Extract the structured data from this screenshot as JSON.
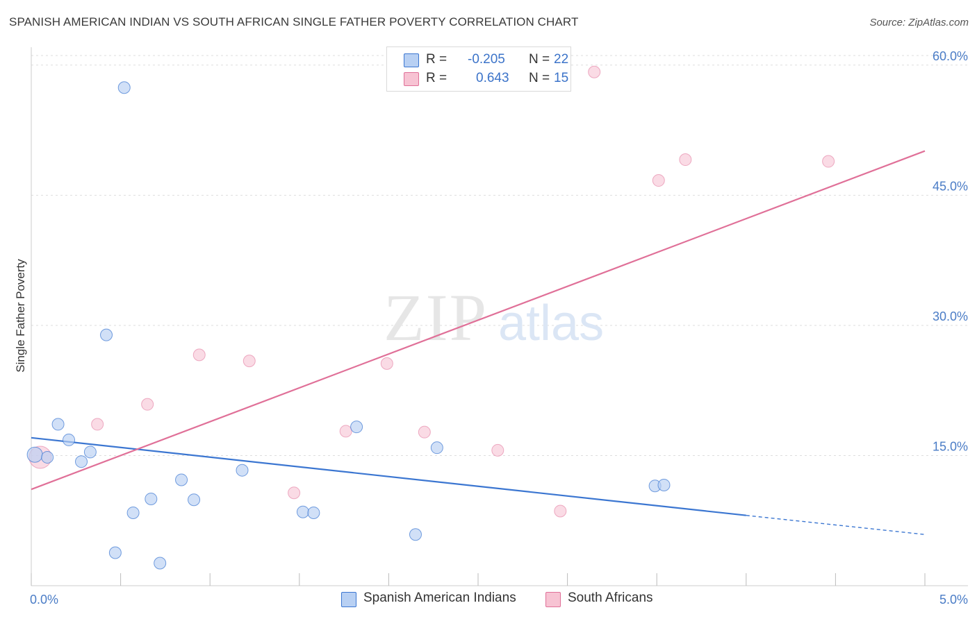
{
  "header": {
    "title": "SPANISH AMERICAN INDIAN VS SOUTH AFRICAN SINGLE FATHER POVERTY CORRELATION CHART",
    "source": "Source: ZipAtlas.com"
  },
  "watermark": {
    "zip": "ZIP",
    "atlas": "atlas"
  },
  "legend": {
    "r_label": "R =",
    "n_label": "N =",
    "series1": {
      "r": "-0.205",
      "n": "22"
    },
    "series2": {
      "r": "0.643",
      "n": "15"
    }
  },
  "chart_data": {
    "type": "scatter",
    "title": "SPANISH AMERICAN INDIAN VS SOUTH AFRICAN SINGLE FATHER POVERTY CORRELATION CHART",
    "xlabel": "",
    "ylabel": "Single Father Poverty",
    "xlim": [
      0,
      5
    ],
    "ylim": [
      0,
      61.5
    ],
    "x_tick_labels": [
      "0.0%",
      "5.0%"
    ],
    "y_ticks": [
      15,
      30,
      45,
      60
    ],
    "y_tick_labels": [
      "15.0%",
      "30.0%",
      "45.0%",
      "60.0%"
    ],
    "grid": true,
    "colors": {
      "series1": "#3b76d1",
      "series2": "#e07098",
      "fill1": "#b8d0f3",
      "fill2": "#f7c3d3"
    },
    "series": [
      {
        "name": "Spanish American Indians",
        "points": [
          [
            0.02,
            15.1
          ],
          [
            0.09,
            14.8
          ],
          [
            0.15,
            18.6
          ],
          [
            0.21,
            16.8
          ],
          [
            0.28,
            14.3
          ],
          [
            0.33,
            15.4
          ],
          [
            0.42,
            28.9
          ],
          [
            0.47,
            3.8
          ],
          [
            0.52,
            57.4
          ],
          [
            0.57,
            8.4
          ],
          [
            0.67,
            10.0
          ],
          [
            0.72,
            2.6
          ],
          [
            0.84,
            12.2
          ],
          [
            0.91,
            9.9
          ],
          [
            1.18,
            13.3
          ],
          [
            1.52,
            8.5
          ],
          [
            1.58,
            8.4
          ],
          [
            1.82,
            18.3
          ],
          [
            2.15,
            5.9
          ],
          [
            2.27,
            15.9
          ],
          [
            3.49,
            11.5
          ],
          [
            3.54,
            11.6
          ]
        ],
        "trend": {
          "x0": 0,
          "y0": 17.05,
          "x1": 4.0,
          "y1": 8.1,
          "dashed_to_x": 5.0,
          "dashed_to_y": 5.9
        }
      },
      {
        "name": "South Africans",
        "points": [
          [
            0.05,
            14.8
          ],
          [
            0.37,
            18.6
          ],
          [
            0.65,
            20.9
          ],
          [
            0.94,
            26.6
          ],
          [
            1.22,
            25.9
          ],
          [
            1.47,
            10.7
          ],
          [
            1.76,
            17.8
          ],
          [
            1.99,
            25.6
          ],
          [
            2.2,
            17.7
          ],
          [
            2.61,
            15.6
          ],
          [
            2.96,
            8.6
          ],
          [
            3.15,
            59.2
          ],
          [
            3.51,
            46.7
          ],
          [
            3.66,
            49.1
          ],
          [
            4.46,
            48.9
          ]
        ],
        "trend": {
          "x0": 0,
          "y0": 11.1,
          "x1": 5.0,
          "y1": 50.1
        }
      }
    ]
  }
}
